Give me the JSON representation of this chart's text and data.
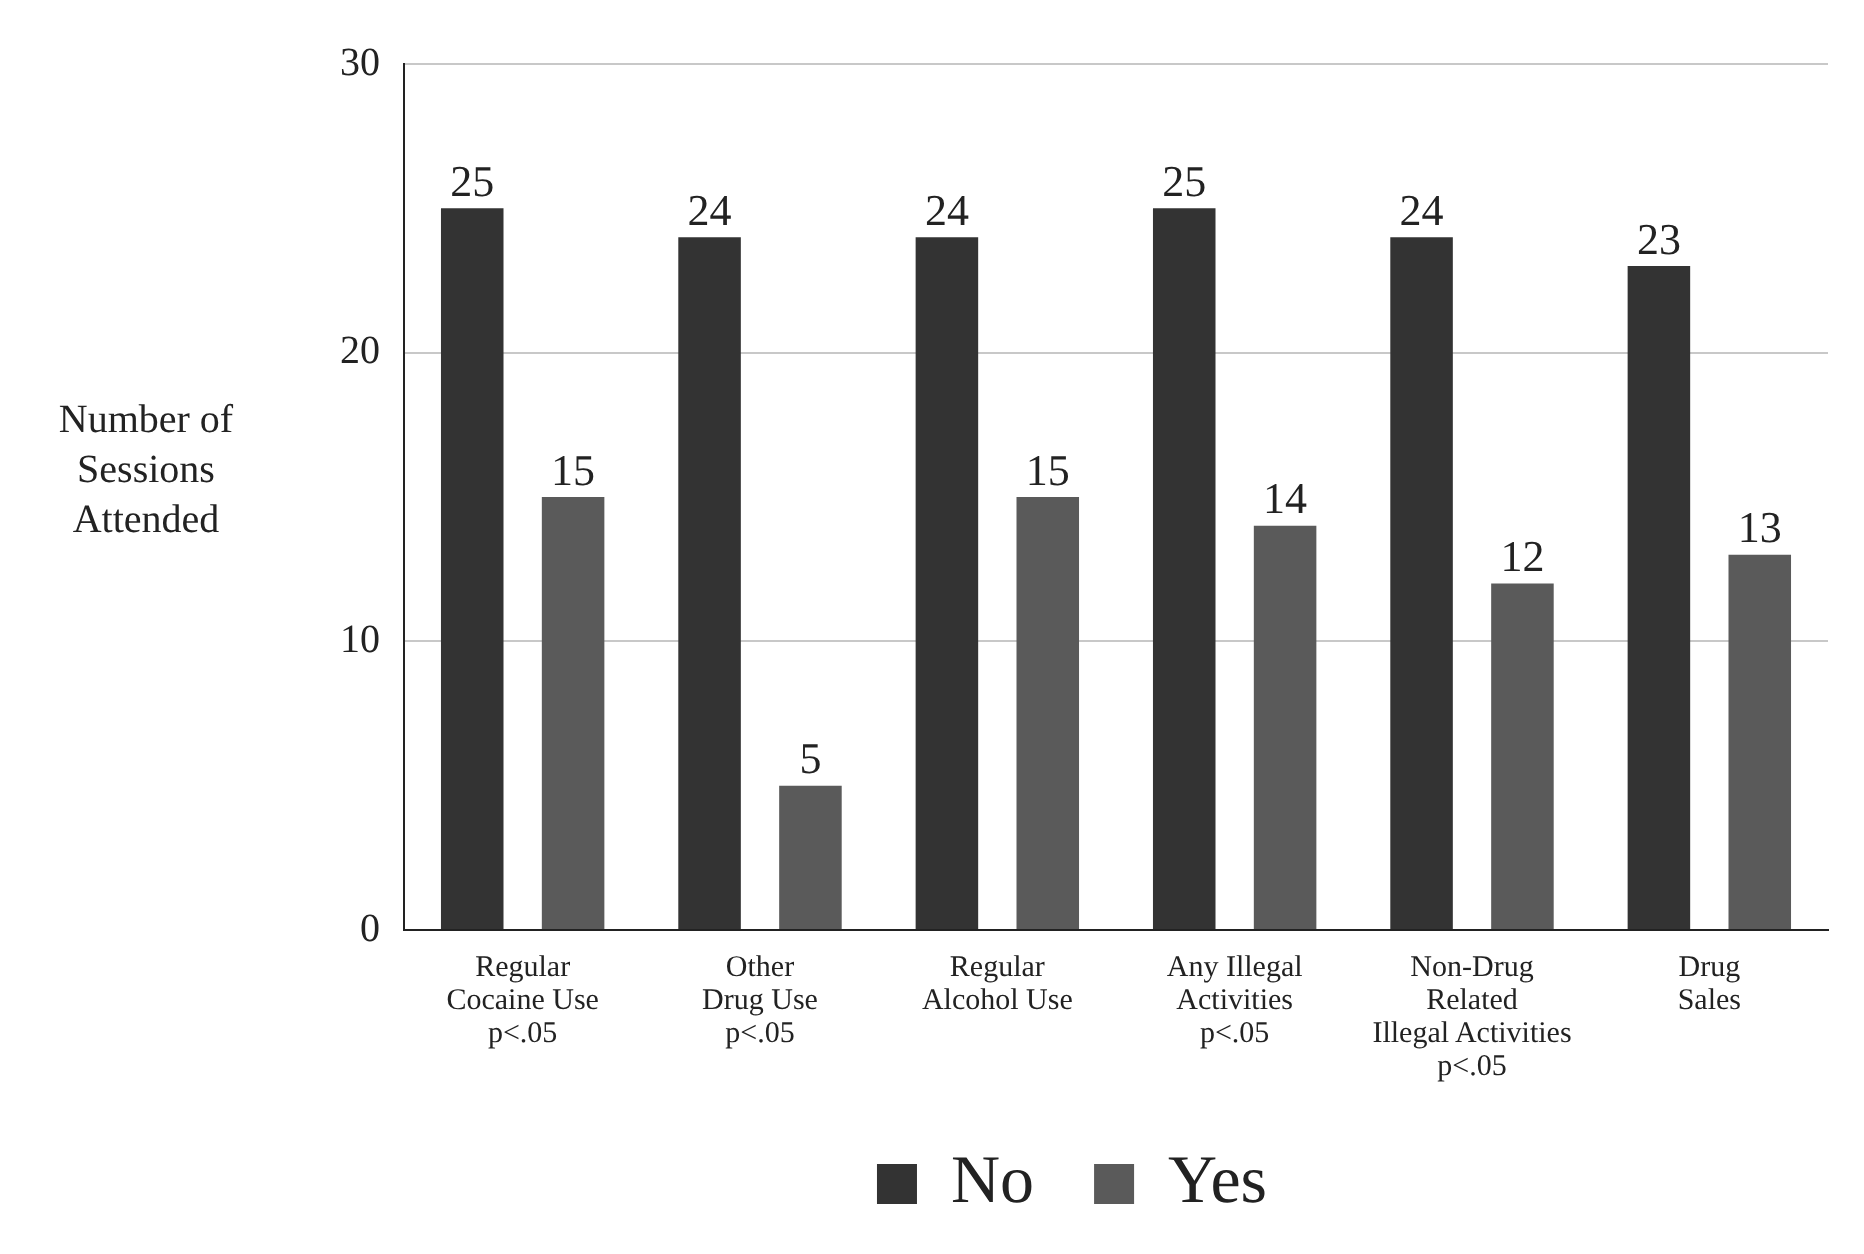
{
  "chart_data": {
    "type": "bar",
    "ylabel": "Number of Sessions Attended",
    "categories": [
      "Regular\nCocaine Use\np<.05",
      "Other\nDrug Use\np<.05",
      "Regular\nAlcohol Use",
      "Any Illegal\nActivities\np<.05",
      "Non-Drug\nRelated\nIllegal Activities\np<.05",
      "Drug\nSales"
    ],
    "series": [
      {
        "name": "No",
        "color": "#333333",
        "values": [
          25,
          24,
          24,
          25,
          24,
          23
        ]
      },
      {
        "name": "Yes",
        "color": "#5a5a5a",
        "values": [
          15,
          5,
          15,
          14,
          12,
          13
        ]
      }
    ],
    "ylim": [
      0,
      30
    ],
    "yticks": [
      0,
      10,
      20,
      30
    ],
    "grid": "y",
    "legend": "bottom",
    "data_labels": true
  }
}
